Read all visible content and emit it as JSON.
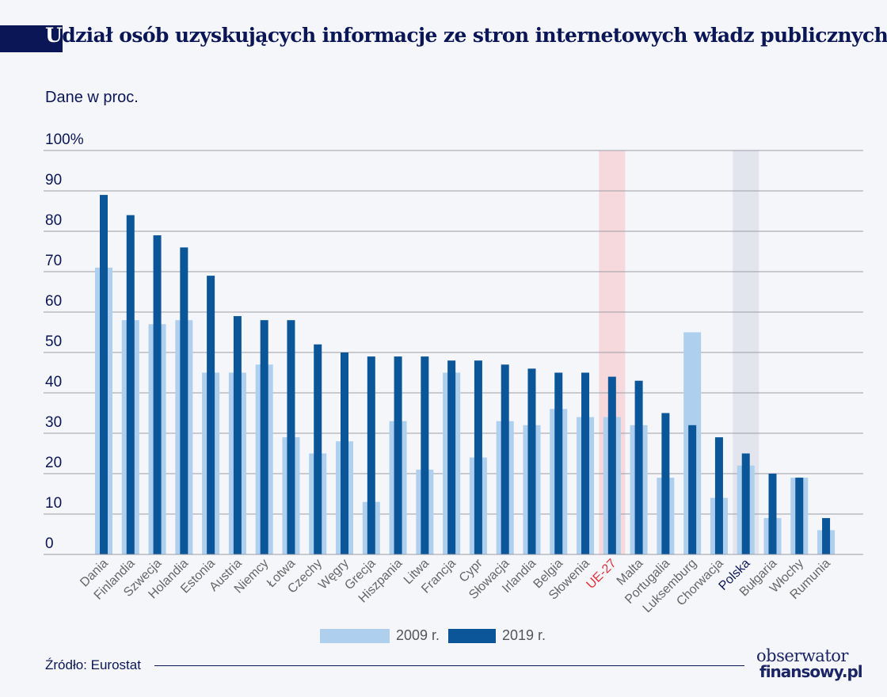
{
  "header": {
    "title_first": "U",
    "title_rest": "dział osób uzyskujących informacje ze stron internetowych władz publicznych",
    "subtitle": "Dane w proc."
  },
  "chart_data": {
    "type": "bar",
    "title": "Udział osób uzyskujących informacje ze stron internetowych władz publicznych",
    "ylabel": "Dane w proc.",
    "ylim": [
      0,
      100
    ],
    "yticks": [
      "0",
      "10",
      "20",
      "30",
      "40",
      "50",
      "60",
      "70",
      "80",
      "90",
      "100%"
    ],
    "grid": true,
    "legend_position": "bottom",
    "categories": [
      "Dania",
      "Finlandia",
      "Szwecja",
      "Holandia",
      "Estonia",
      "Austria",
      "Niemcy",
      "Łotwa",
      "Czechy",
      "Węgry",
      "Grecja",
      "Hiszpania",
      "Litwa",
      "Francja",
      "Cypr",
      "Słowacja",
      "Irlandia",
      "Belgia",
      "Słowenia",
      "UE-27",
      "Malta",
      "Portugalia",
      "Luksemburg",
      "Chorwacja",
      "Polska",
      "Bułgaria",
      "Włochy",
      "Rumunia"
    ],
    "highlight": {
      "UE-27": "#e0303a",
      "Polska": "#0b1657"
    },
    "series": [
      {
        "name": "2009 r.",
        "color": "#aecfee",
        "values": [
          71,
          58,
          57,
          58,
          45,
          45,
          47,
          29,
          25,
          28,
          13,
          33,
          21,
          45,
          24,
          33,
          32,
          36,
          34,
          34,
          32,
          19,
          55,
          14,
          22,
          9,
          19,
          6
        ]
      },
      {
        "name": "2019 r.",
        "color": "#0a5699",
        "values": [
          89,
          84,
          79,
          76,
          69,
          59,
          58,
          58,
          52,
          50,
          49,
          49,
          49,
          48,
          48,
          47,
          46,
          45,
          45,
          44,
          43,
          35,
          32,
          29,
          25,
          20,
          19,
          9
        ]
      }
    ]
  },
  "footer": {
    "source": "Źródło: Eurostat",
    "logo_line1": "obserwator",
    "logo_line2": "finansowy.pl"
  }
}
